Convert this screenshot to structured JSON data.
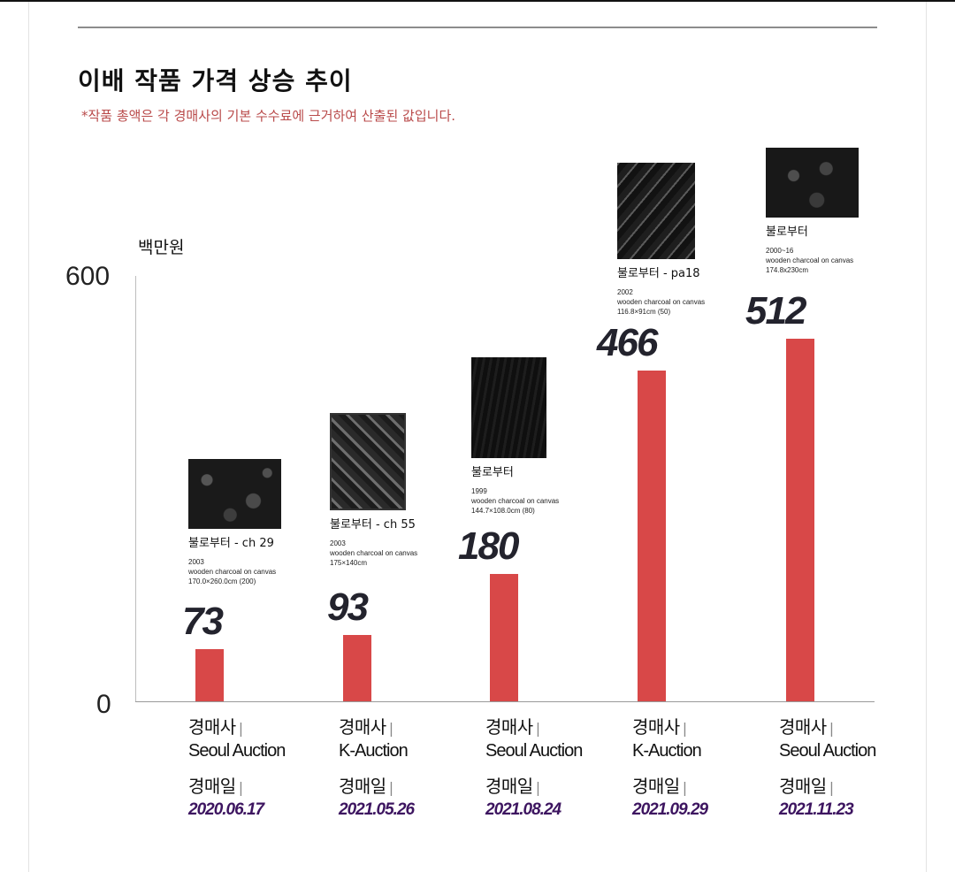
{
  "page": {
    "title": "이배 작품 가격 상승 추이",
    "note": "*작품 총액은 각 경매사의 기본 수수료에 근거하여 산출된 값입니다.",
    "auction_house_label": "경매사",
    "auction_date_label": "경매일",
    "separator": "|"
  },
  "colors": {
    "bar": "#d84848",
    "date": "#3d1560",
    "note": "#b94a4a"
  },
  "chart_data": {
    "type": "bar",
    "ylabel": "백만원",
    "ylim": [
      0,
      600
    ],
    "y_ticks": [
      "0",
      "600"
    ],
    "categories": [
      "2020.06.17",
      "2021.05.26",
      "2021.08.24",
      "2021.09.29",
      "2021.11.23"
    ],
    "values": [
      73,
      93,
      180,
      466,
      512
    ],
    "items": [
      {
        "value": 73,
        "value_label": "73",
        "auction_house": "Seoul Auction",
        "date": "2020.06.17",
        "artwork": {
          "name": "불로부터 - ch 29",
          "year": "2003",
          "medium": "wooden charcoal on canvas",
          "size": "170.0×260.0cm (200)"
        }
      },
      {
        "value": 93,
        "value_label": "93",
        "auction_house": "K-Auction",
        "date": "2021.05.26",
        "artwork": {
          "name": "불로부터 - ch 55",
          "year": "2003",
          "medium": "wooden charcoal on canvas",
          "size": "175×140cm"
        }
      },
      {
        "value": 180,
        "value_label": "180",
        "auction_house": "Seoul Auction",
        "date": "2021.08.24",
        "artwork": {
          "name": "불로부터",
          "year": "1999",
          "medium": "wooden charcoal on canvas",
          "size": "144.7×108.0cm (80)"
        }
      },
      {
        "value": 466,
        "value_label": "466",
        "auction_house": "K-Auction",
        "date": "2021.09.29",
        "artwork": {
          "name": "불로부터 - pa18",
          "year": "2002",
          "medium": "wooden charcoal on canvas",
          "size": "116.8×91cm (50)"
        }
      },
      {
        "value": 512,
        "value_label": "512",
        "auction_house": "Seoul Auction",
        "date": "2021.11.23",
        "artwork": {
          "name": "불로부터",
          "year": "2000~16",
          "medium": "wooden charcoal on canvas",
          "size": "174.8x230cm"
        }
      }
    ]
  }
}
